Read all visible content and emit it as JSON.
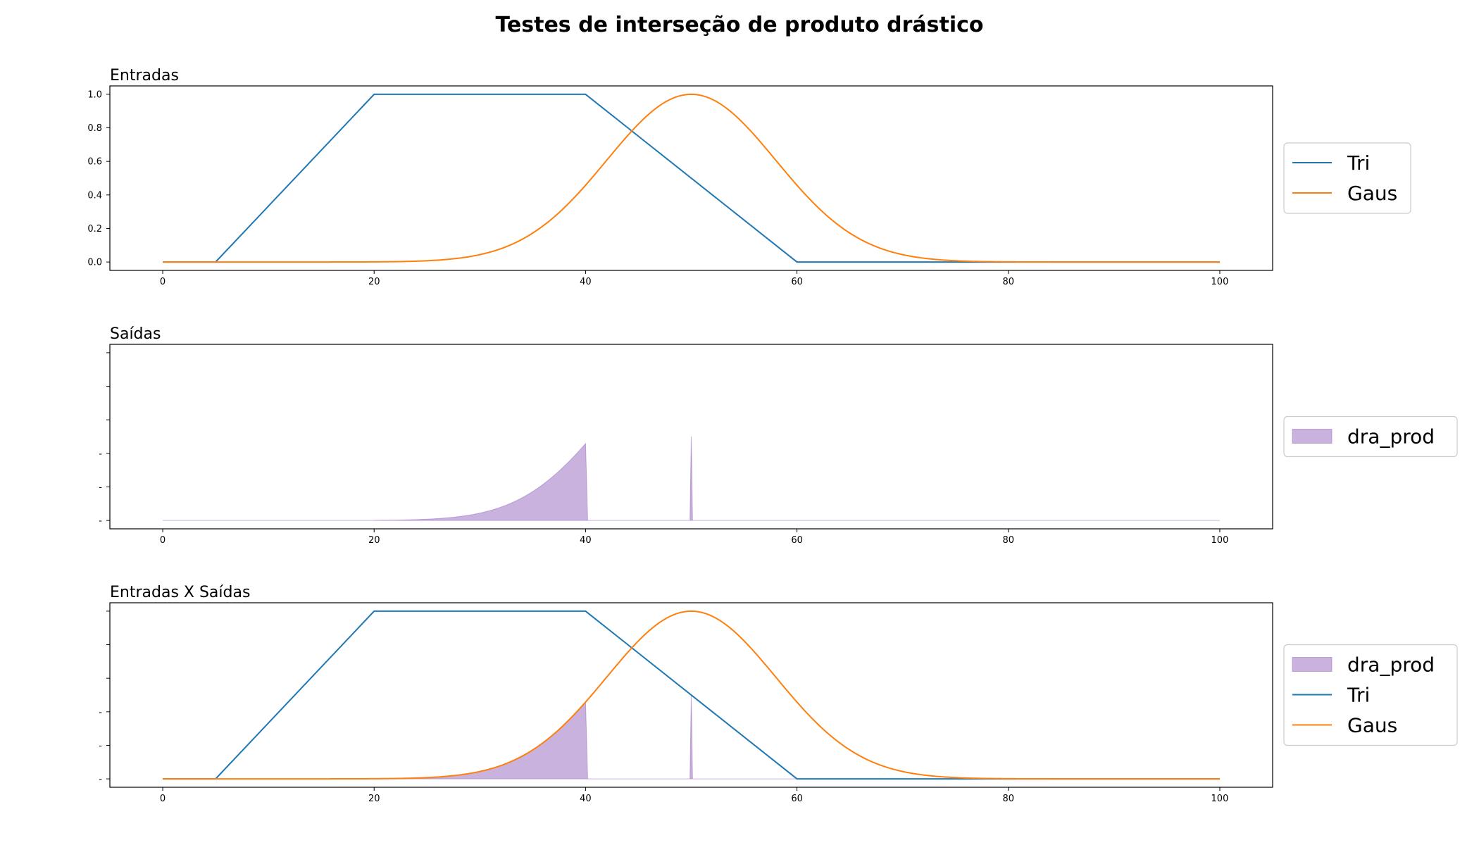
{
  "figure": {
    "title": "Testes de interseção de produto drástico"
  },
  "colors": {
    "tri": "#1f77b4",
    "gaus": "#ff7f0e",
    "dra_prod": "#9467bd"
  },
  "chart_data": [
    {
      "type": "line",
      "title": "Entradas",
      "xlim": [
        -5,
        105
      ],
      "ylim": [
        -0.05,
        1.05
      ],
      "xticks": [
        0,
        20,
        40,
        60,
        80,
        100
      ],
      "yticks": [
        0.0,
        0.2,
        0.4,
        0.6,
        0.8,
        1.0
      ],
      "ytick_labels": [
        "0.0",
        "0.2",
        "0.4",
        "0.6",
        "0.8",
        "1.0"
      ],
      "legend": "right",
      "series": [
        {
          "name": "Tri",
          "kind": "trapezoid",
          "points": [
            [
              0,
              0
            ],
            [
              5,
              0
            ],
            [
              20,
              1
            ],
            [
              40,
              1
            ],
            [
              60,
              0
            ],
            [
              100,
              0
            ]
          ]
        },
        {
          "name": "Gaus",
          "kind": "gaussian",
          "mean": 50,
          "sigma": 8,
          "x_range": [
            0,
            100
          ]
        }
      ]
    },
    {
      "type": "area",
      "title": "Saídas",
      "xlim": [
        -5,
        105
      ],
      "ylim": [
        -0.05,
        1.05
      ],
      "xticks": [
        0,
        20,
        40,
        60,
        80,
        100
      ],
      "yticks": [
        0.0,
        0.2,
        0.4,
        0.6,
        0.8,
        1.0
      ],
      "ytick_labels": [
        "-",
        "-",
        "-",
        "",
        "",
        ""
      ],
      "legend": "right",
      "series": [
        {
          "name": "dra_prod",
          "kind": "drastic_product",
          "inputs": [
            "Tri",
            "Gaus"
          ],
          "spike_x": 50,
          "spike_y": 0.5
        }
      ]
    },
    {
      "type": "line",
      "title": "Entradas X Saídas",
      "xlim": [
        -5,
        105
      ],
      "ylim": [
        -0.05,
        1.05
      ],
      "xticks": [
        0,
        20,
        40,
        60,
        80,
        100
      ],
      "yticks": [
        0.0,
        0.2,
        0.4,
        0.6,
        0.8,
        1.0
      ],
      "ytick_labels": [
        "-",
        "-",
        "-",
        "",
        "",
        ""
      ],
      "legend": "right",
      "series": [
        {
          "name": "dra_prod",
          "kind": "drastic_product",
          "inputs": [
            "Tri",
            "Gaus"
          ],
          "spike_x": 50,
          "spike_y": 0.5
        },
        {
          "name": "Tri",
          "kind": "trapezoid",
          "points": [
            [
              0,
              0
            ],
            [
              5,
              0
            ],
            [
              20,
              1
            ],
            [
              40,
              1
            ],
            [
              60,
              0
            ],
            [
              100,
              0
            ]
          ]
        },
        {
          "name": "Gaus",
          "kind": "gaussian",
          "mean": 50,
          "sigma": 8,
          "x_range": [
            0,
            100
          ]
        }
      ]
    }
  ]
}
